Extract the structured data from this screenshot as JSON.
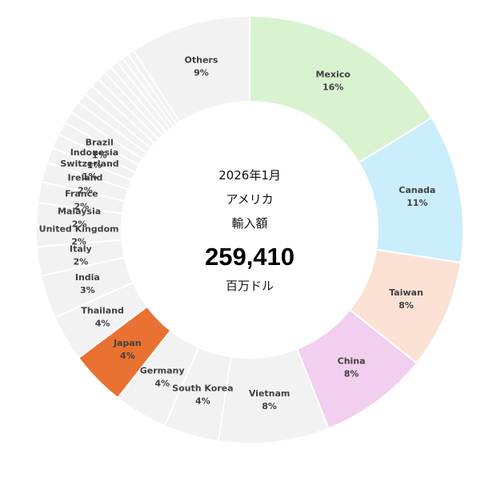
{
  "center": {
    "line1": "2026年1月",
    "line2": "アメリカ",
    "line3": "輸入額",
    "value": "259,410",
    "unit": "百万ドル"
  },
  "chart_data": {
    "type": "donut",
    "total": 259410,
    "slices": [
      {
        "name": "Mexico",
        "label": "16%",
        "value": 16.3,
        "color": "#d9f2d0"
      },
      {
        "name": "Canada",
        "label": "11%",
        "value": 11.3,
        "color": "#caeefb"
      },
      {
        "name": "Taiwan",
        "label": "8%",
        "value": 8.3,
        "color": "#fbe2d5"
      },
      {
        "name": "China",
        "label": "8%",
        "value": 8.3,
        "color": "#f2ceef"
      },
      {
        "name": "Vietnam",
        "label": "8%",
        "value": 8.4,
        "color": "#f2f2f2"
      },
      {
        "name": "South Korea",
        "label": "4%",
        "value": 4.2,
        "color": "#f2f2f2"
      },
      {
        "name": "Germany",
        "label": "4%",
        "value": 4.1,
        "color": "#f2f2f2"
      },
      {
        "name": "Japan",
        "label": "4%",
        "value": 4.2,
        "color": "#e97132"
      },
      {
        "name": "Thailand",
        "label": "4%",
        "value": 3.5,
        "color": "#f2f2f2"
      },
      {
        "name": "India",
        "label": "3%",
        "value": 3.3,
        "color": "#f2f2f2"
      },
      {
        "name": "Italy",
        "label": "2%",
        "value": 2.2,
        "color": "#f2f2f2"
      },
      {
        "name": "United Kingdom",
        "label": "2%",
        "value": 1.6,
        "color": "#f2f2f2"
      },
      {
        "name": "Malaysia",
        "label": "2%",
        "value": 1.7,
        "color": "#f2f2f2"
      },
      {
        "name": "France",
        "label": "2%",
        "value": 1.6,
        "color": "#f2f2f2"
      },
      {
        "name": "Ireland",
        "label": "2%",
        "value": 1.5,
        "color": "#f2f2f2"
      },
      {
        "name": "Switzerland",
        "label": "1%",
        "value": 1.2,
        "color": "#f2f2f2"
      },
      {
        "name": "Indonesia",
        "label": "1%",
        "value": 1.1,
        "color": "#f2f2f2"
      },
      {
        "name": "Brazil",
        "label": "1%",
        "value": 1.0,
        "color": "#f2f2f2"
      },
      {
        "name": "",
        "label": "",
        "value": 0.9,
        "color": "#f2f2f2"
      },
      {
        "name": "",
        "label": "",
        "value": 0.9,
        "color": "#f2f2f2"
      },
      {
        "name": "",
        "label": "",
        "value": 0.8,
        "color": "#f2f2f2"
      },
      {
        "name": "",
        "label": "",
        "value": 0.8,
        "color": "#f2f2f2"
      },
      {
        "name": "",
        "label": "",
        "value": 0.7,
        "color": "#f2f2f2"
      },
      {
        "name": "",
        "label": "",
        "value": 0.7,
        "color": "#f2f2f2"
      },
      {
        "name": "",
        "label": "",
        "value": 0.6,
        "color": "#f2f2f2"
      },
      {
        "name": "",
        "label": "",
        "value": 0.6,
        "color": "#f2f2f2"
      },
      {
        "name": "",
        "label": "",
        "value": 0.5,
        "color": "#f2f2f2"
      },
      {
        "name": "",
        "label": "",
        "value": 0.5,
        "color": "#f2f2f2"
      },
      {
        "name": "",
        "label": "",
        "value": 0.5,
        "color": "#f2f2f2"
      },
      {
        "name": "Others",
        "label": "9%",
        "value": 9.2,
        "color": "#f2f2f2"
      }
    ]
  }
}
